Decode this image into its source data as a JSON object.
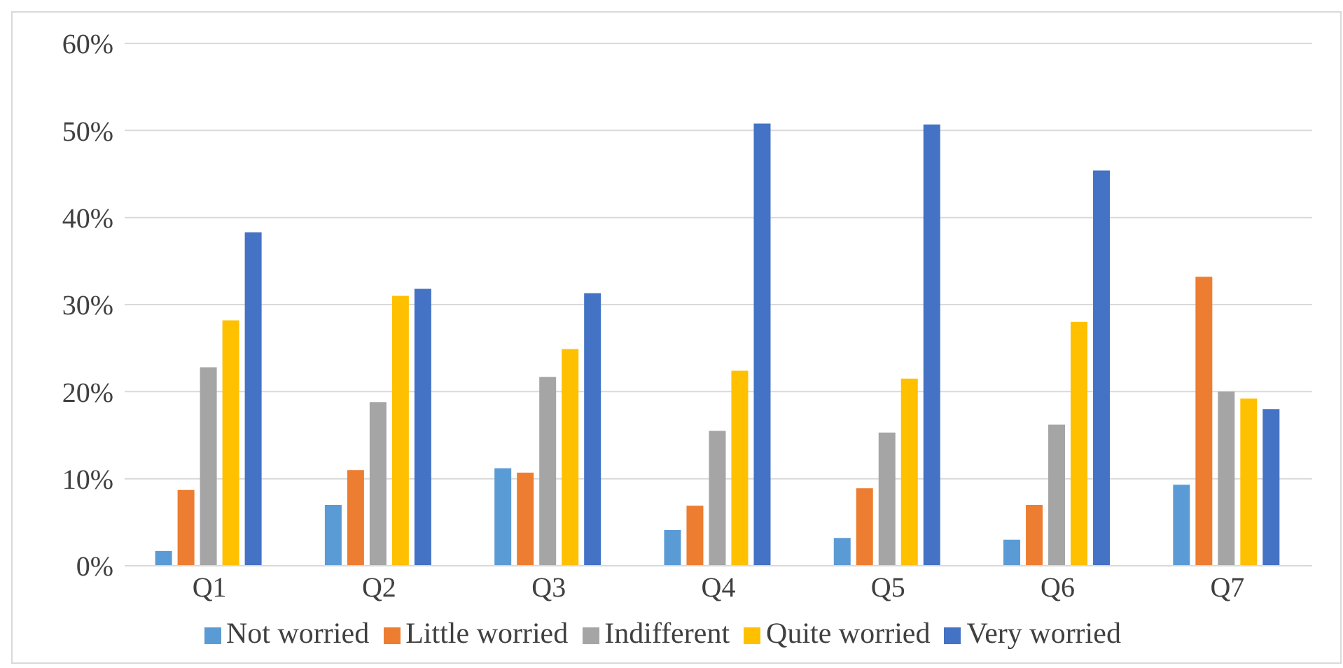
{
  "chart_data": {
    "type": "bar",
    "categories": [
      "Q1",
      "Q2",
      "Q3",
      "Q4",
      "Q5",
      "Q6",
      "Q7"
    ],
    "series": [
      {
        "name": "Not worried",
        "color": "#5b9bd5",
        "values": [
          1.7,
          7.0,
          11.2,
          4.1,
          3.2,
          3.0,
          9.3
        ]
      },
      {
        "name": "Little worried",
        "color": "#ed7d31",
        "values": [
          8.7,
          11.0,
          10.7,
          6.9,
          8.9,
          7.0,
          33.2
        ]
      },
      {
        "name": "Indifferent",
        "color": "#a5a5a5",
        "values": [
          22.8,
          18.8,
          21.7,
          15.5,
          15.3,
          16.2,
          20.0
        ]
      },
      {
        "name": "Quite worried",
        "color": "#ffc000",
        "values": [
          28.2,
          31.0,
          24.9,
          22.4,
          21.5,
          28.0,
          19.2
        ]
      },
      {
        "name": "Very worried",
        "color": "#4472c4",
        "values": [
          38.3,
          31.8,
          31.3,
          50.8,
          50.7,
          45.4,
          18.0
        ]
      }
    ],
    "ylim": [
      0,
      60
    ],
    "yticks": [
      {
        "value": 0,
        "label": "0%"
      },
      {
        "value": 10,
        "label": "10%"
      },
      {
        "value": 20,
        "label": "20%"
      },
      {
        "value": 30,
        "label": "30%"
      },
      {
        "value": 40,
        "label": "40%"
      },
      {
        "value": 50,
        "label": "50%"
      },
      {
        "value": 60,
        "label": "60%"
      }
    ],
    "grid": "y",
    "legend": "bottom"
  }
}
